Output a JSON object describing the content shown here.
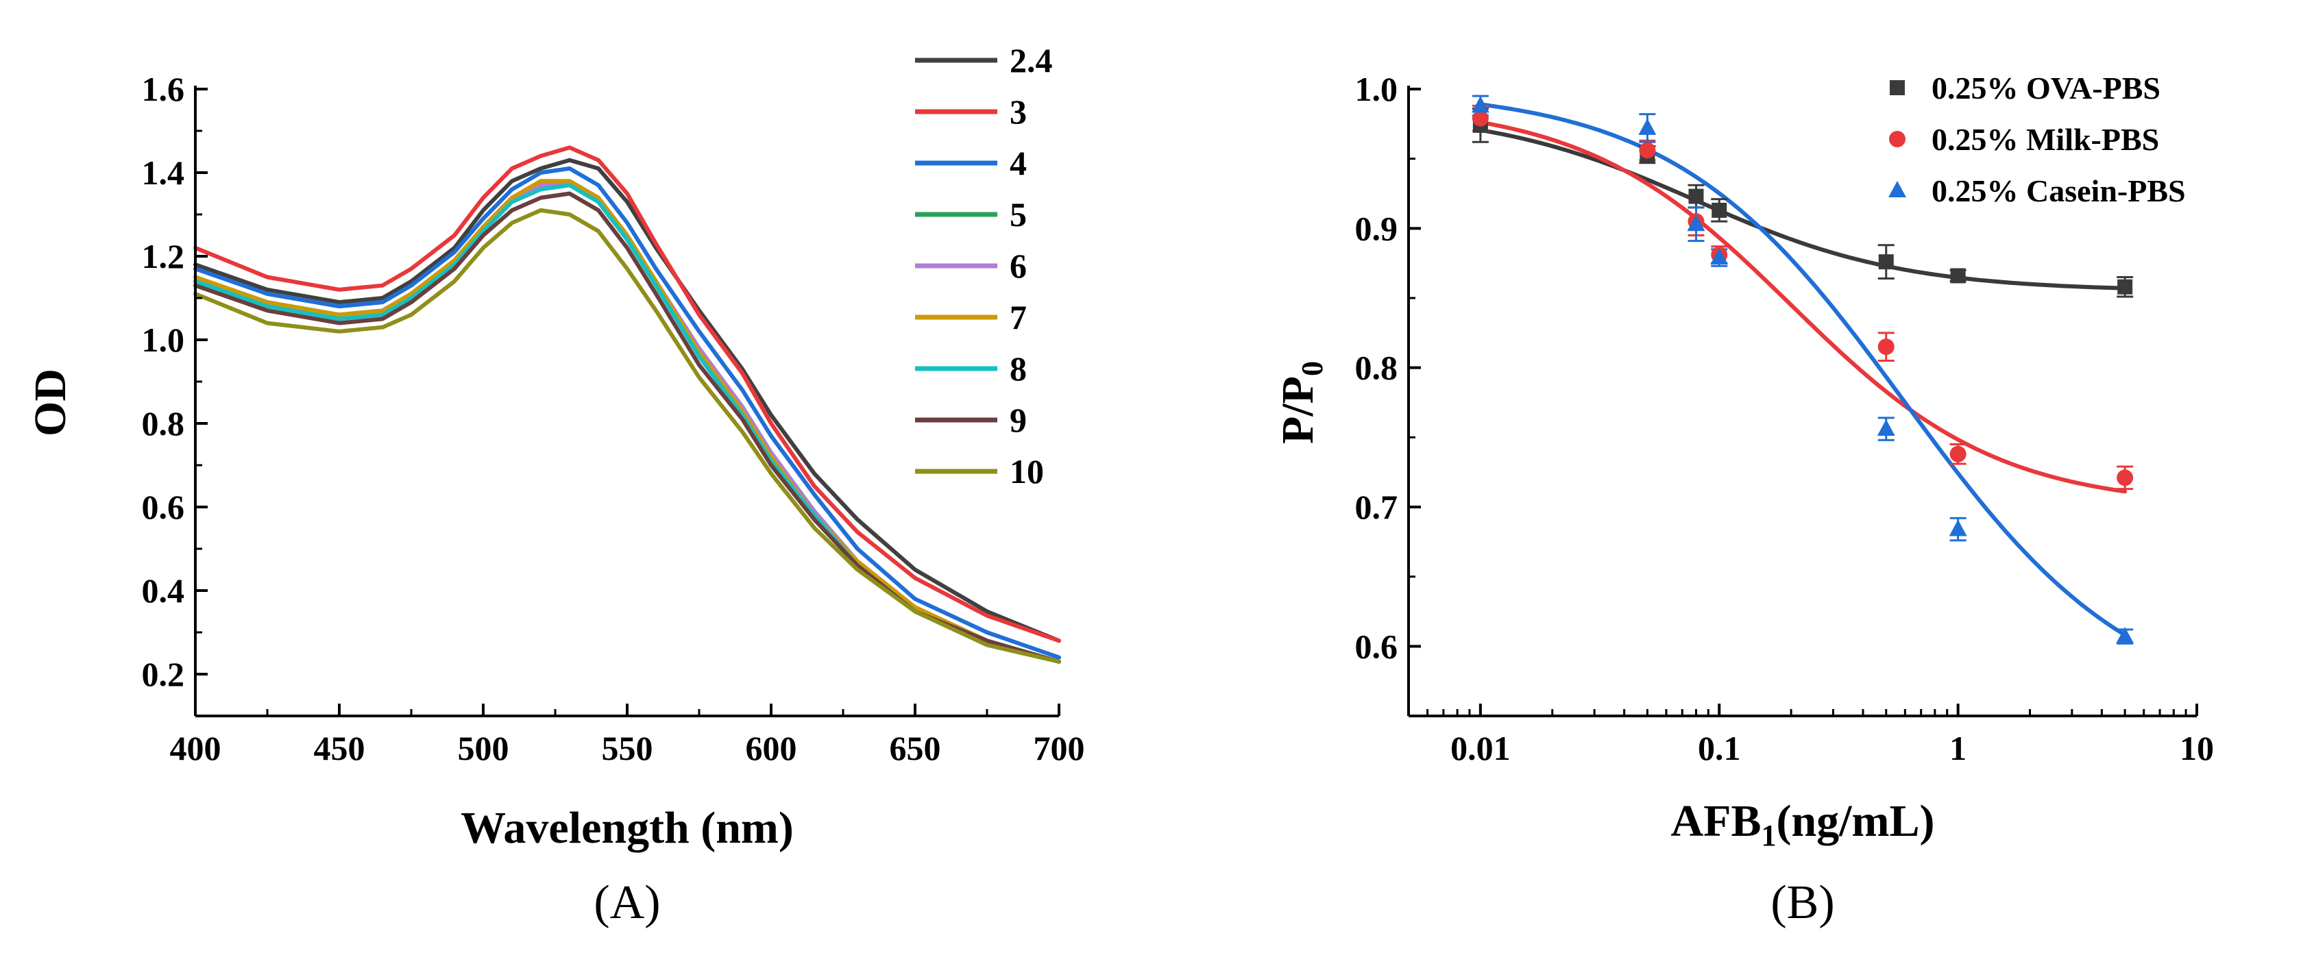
{
  "panel_a_label": "(A)",
  "panel_b_label": "(B)",
  "chart_data": [
    {
      "type": "line",
      "panel": "A",
      "xlabel": "Wavelength (nm)",
      "ylabel": "OD",
      "xlim": [
        400,
        700
      ],
      "ylim": [
        0.1,
        1.6
      ],
      "xticks": [
        400,
        450,
        500,
        550,
        600,
        650,
        700
      ],
      "xtick_labels": [
        "400",
        "450",
        "500",
        "550",
        "600",
        "650",
        "700"
      ],
      "yticks": [
        0.2,
        0.4,
        0.6,
        0.8,
        1.0,
        1.2,
        1.4,
        1.6
      ],
      "ytick_labels": [
        "0.2",
        "0.4",
        "0.6",
        "0.8",
        "1.0",
        "1.2",
        "1.4",
        "1.6"
      ],
      "legend_position": "top-right",
      "x": [
        400,
        425,
        450,
        465,
        475,
        490,
        500,
        510,
        520,
        530,
        540,
        550,
        560,
        575,
        590,
        600,
        615,
        630,
        650,
        675,
        700
      ],
      "series": [
        {
          "name": "2.4",
          "color": "#404040",
          "values": [
            1.18,
            1.12,
            1.09,
            1.1,
            1.14,
            1.22,
            1.31,
            1.38,
            1.41,
            1.43,
            1.41,
            1.33,
            1.22,
            1.07,
            0.93,
            0.82,
            0.68,
            0.57,
            0.45,
            0.35,
            0.28
          ]
        },
        {
          "name": "3",
          "color": "#e8383b",
          "values": [
            1.22,
            1.15,
            1.12,
            1.13,
            1.17,
            1.25,
            1.34,
            1.41,
            1.44,
            1.46,
            1.43,
            1.35,
            1.23,
            1.06,
            0.92,
            0.8,
            0.65,
            0.54,
            0.43,
            0.34,
            0.28
          ]
        },
        {
          "name": "4",
          "color": "#1f6fd6",
          "values": [
            1.17,
            1.11,
            1.08,
            1.09,
            1.13,
            1.21,
            1.29,
            1.36,
            1.4,
            1.41,
            1.37,
            1.28,
            1.17,
            1.02,
            0.88,
            0.77,
            0.63,
            0.5,
            0.38,
            0.3,
            0.24
          ]
        },
        {
          "name": "5",
          "color": "#2ca05a",
          "values": [
            1.15,
            1.09,
            1.06,
            1.07,
            1.11,
            1.19,
            1.27,
            1.34,
            1.37,
            1.37,
            1.33,
            1.24,
            1.13,
            0.97,
            0.84,
            0.73,
            0.59,
            0.47,
            0.36,
            0.28,
            0.23
          ]
        },
        {
          "name": "6",
          "color": "#b07cd9",
          "values": [
            1.14,
            1.08,
            1.06,
            1.07,
            1.11,
            1.19,
            1.27,
            1.34,
            1.37,
            1.38,
            1.34,
            1.25,
            1.14,
            0.98,
            0.84,
            0.73,
            0.59,
            0.47,
            0.36,
            0.28,
            0.23
          ]
        },
        {
          "name": "7",
          "color": "#cc9a06",
          "values": [
            1.15,
            1.09,
            1.06,
            1.07,
            1.11,
            1.19,
            1.27,
            1.34,
            1.38,
            1.38,
            1.34,
            1.25,
            1.14,
            0.97,
            0.83,
            0.72,
            0.58,
            0.47,
            0.36,
            0.28,
            0.23
          ]
        },
        {
          "name": "8",
          "color": "#17bfc0",
          "values": [
            1.14,
            1.08,
            1.05,
            1.06,
            1.1,
            1.18,
            1.26,
            1.33,
            1.36,
            1.37,
            1.33,
            1.24,
            1.13,
            0.96,
            0.82,
            0.71,
            0.58,
            0.46,
            0.35,
            0.27,
            0.23
          ]
        },
        {
          "name": "9",
          "color": "#6b3e3e",
          "values": [
            1.13,
            1.07,
            1.04,
            1.05,
            1.09,
            1.17,
            1.25,
            1.31,
            1.34,
            1.35,
            1.31,
            1.22,
            1.11,
            0.94,
            0.81,
            0.7,
            0.57,
            0.46,
            0.35,
            0.28,
            0.23
          ]
        },
        {
          "name": "10",
          "color": "#8f8f1a",
          "values": [
            1.11,
            1.04,
            1.02,
            1.03,
            1.06,
            1.14,
            1.22,
            1.28,
            1.31,
            1.3,
            1.26,
            1.17,
            1.07,
            0.91,
            0.78,
            0.68,
            0.55,
            0.45,
            0.35,
            0.27,
            0.23
          ]
        }
      ]
    },
    {
      "type": "scatter",
      "panel": "B",
      "xlabel_main": "AFB",
      "xlabel_sub": "1",
      "xlabel_tail": "(ng/mL)",
      "ylabel_main": "P/P",
      "ylabel_sub": "0",
      "xscale": "log",
      "xlim": [
        0.005,
        10
      ],
      "ylim": [
        0.55,
        1.0
      ],
      "xticks": [
        0.01,
        0.1,
        1,
        10
      ],
      "xtick_labels": [
        "0.01",
        "0.1",
        "1",
        "10"
      ],
      "yticks": [
        0.6,
        0.7,
        0.8,
        0.9,
        1.0
      ],
      "ytick_labels": [
        "0.6",
        "0.7",
        "0.8",
        "0.9",
        "1.0"
      ],
      "legend_position": "top-right",
      "x": [
        0.01,
        0.05,
        0.08,
        0.1,
        0.5,
        1,
        5
      ],
      "series": [
        {
          "name": "0.25% OVA-PBS",
          "marker": "square",
          "color": "#3a3a3a",
          "values": [
            0.974,
            0.953,
            0.923,
            0.913,
            0.876,
            0.866,
            0.858
          ],
          "errors": [
            0.012,
            0.006,
            0.008,
            0.008,
            0.012,
            0.004,
            0.007
          ],
          "fit": {
            "top": 0.985,
            "bottom": 0.855,
            "ec50": 0.08,
            "hill": 1.0
          }
        },
        {
          "name": "0.25% Milk-PBS",
          "marker": "circle",
          "color": "#e8383b",
          "values": [
            0.979,
            0.956,
            0.905,
            0.881,
            0.815,
            0.738,
            0.721
          ],
          "errors": [
            0.009,
            0.007,
            0.01,
            0.006,
            0.01,
            0.007,
            0.008
          ],
          "fit": {
            "top": 0.99,
            "bottom": 0.7,
            "ec50": 0.2,
            "hill": 1.0
          }
        },
        {
          "name": "0.25% Casein-PBS",
          "marker": "triangle",
          "color": "#1f6fd6",
          "values": [
            0.988,
            0.972,
            0.903,
            0.879,
            0.756,
            0.684,
            0.607
          ],
          "errors": [
            0.007,
            0.01,
            0.012,
            0.006,
            0.008,
            0.008,
            0.005
          ],
          "fit": {
            "top": 1.0,
            "bottom": 0.55,
            "ec50": 0.6,
            "hill": 0.9
          }
        }
      ]
    }
  ]
}
